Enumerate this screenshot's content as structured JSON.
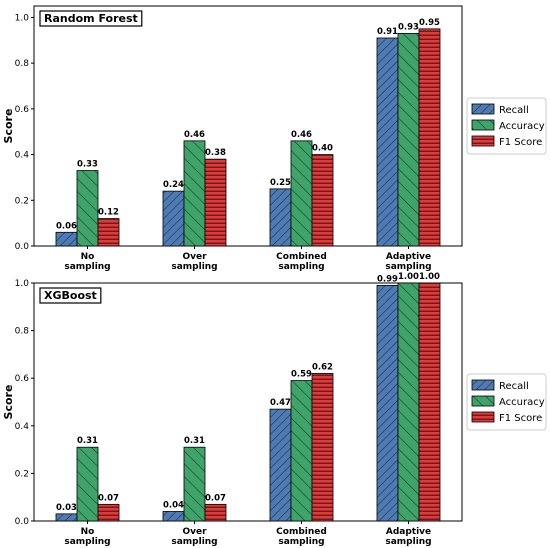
{
  "colors": {
    "Recall": "#4f7bb5",
    "Accuracy": "#3fa46a",
    "F1 Score": "#e03a3a"
  },
  "chart_data": [
    {
      "type": "bar",
      "title": "Random Forest",
      "xlabel": "",
      "ylabel": "Score",
      "ylim": [
        0,
        1.05
      ],
      "yticks": [
        "0.0",
        "0.2",
        "0.4",
        "0.6",
        "0.8",
        "1.0"
      ],
      "categories": [
        "No\nsampling",
        "Over\nsampling",
        "Combined\nsampling",
        "Adaptive\nsampling"
      ],
      "series": [
        {
          "name": "Recall",
          "values": [
            0.06,
            0.24,
            0.25,
            0.91
          ],
          "labels": [
            "0.06",
            "0.24",
            "0.25",
            "0.91"
          ]
        },
        {
          "name": "Accuracy",
          "values": [
            0.33,
            0.46,
            0.46,
            0.93
          ],
          "labels": [
            "0.33",
            "0.46",
            "0.46",
            "0.93"
          ]
        },
        {
          "name": "F1 Score",
          "values": [
            0.12,
            0.38,
            0.4,
            0.95
          ],
          "labels": [
            "0.12",
            "0.38",
            "0.40",
            "0.95"
          ]
        }
      ],
      "legend": "center-right"
    },
    {
      "type": "bar",
      "title": "XGBoost",
      "xlabel": "",
      "ylabel": "Score",
      "ylim": [
        0,
        1.0
      ],
      "yticks": [
        "0.0",
        "0.2",
        "0.4",
        "0.6",
        "0.8",
        "1.0"
      ],
      "categories": [
        "No\nsampling",
        "Over\nsampling",
        "Combined\nsampling",
        "Adaptive\nsampling"
      ],
      "series": [
        {
          "name": "Recall",
          "values": [
            0.03,
            0.04,
            0.47,
            0.99
          ],
          "labels": [
            "0.03",
            "0.04",
            "0.47",
            "0.99"
          ]
        },
        {
          "name": "Accuracy",
          "values": [
            0.31,
            0.31,
            0.59,
            1.0
          ],
          "labels": [
            "0.31",
            "0.31",
            "0.59",
            "1.00"
          ]
        },
        {
          "name": "F1 Score",
          "values": [
            0.07,
            0.07,
            0.62,
            1.0
          ],
          "labels": [
            "0.07",
            "0.07",
            "0.62",
            "1.00"
          ]
        }
      ],
      "legend": "center-right"
    }
  ]
}
